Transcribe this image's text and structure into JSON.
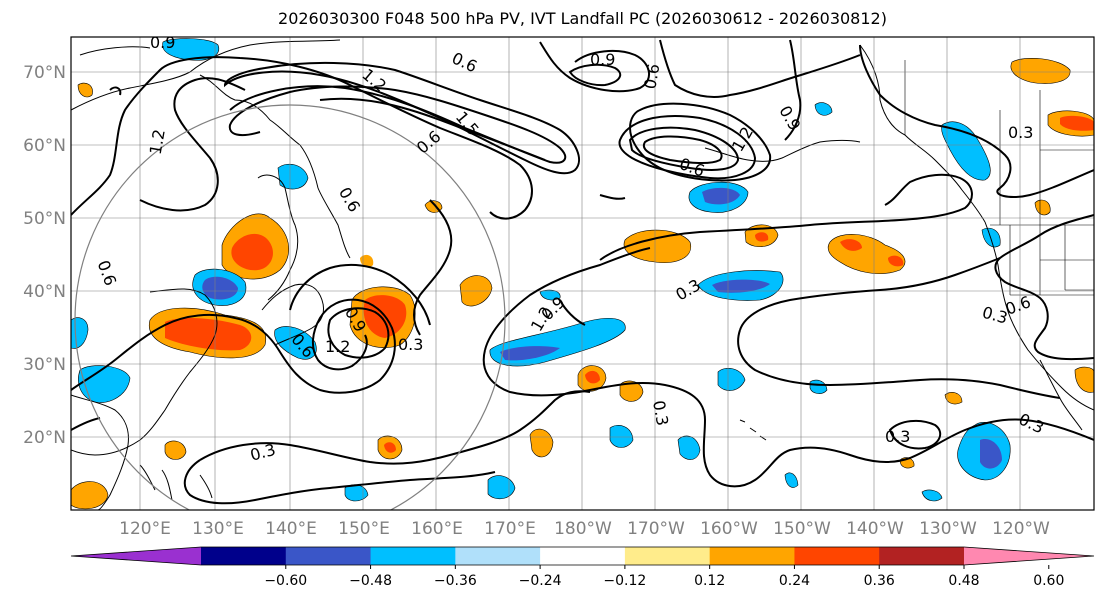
{
  "title": "2026030300 F048 500 hPa PV, IVT Landfall PC (2026030612 - 2026030812)",
  "lat_labels": [
    "70°N",
    "60°N",
    "50°N",
    "40°N",
    "30°N",
    "20°N"
  ],
  "lon_labels": [
    "120°E",
    "130°E",
    "140°E",
    "150°E",
    "160°E",
    "170°E",
    "180°W",
    "170°W",
    "160°W",
    "150°W",
    "140°W",
    "130°W",
    "120°W"
  ],
  "contour_labels": [
    "0.9",
    "1.2",
    "0.6",
    "0.9",
    "1.5",
    "0.6",
    "0.9",
    "0.6",
    "0.3",
    "1.2",
    "0.6",
    "0.6",
    "1.2",
    "0.6",
    "0.3",
    "0.6",
    "0.9",
    "1.2",
    "0.9",
    "1.2",
    "0.3",
    "0.3",
    "0.3",
    "0.6",
    "0.3",
    "0.3",
    "0.3"
  ],
  "colorbar": {
    "tick_labels": [
      "−0.60",
      "−0.48",
      "−0.36",
      "−0.24",
      "−0.12",
      "0.12",
      "0.24",
      "0.36",
      "0.48",
      "0.60"
    ],
    "colors": [
      "#9a30d0",
      "#00008b",
      "#3a56c8",
      "#00bfff",
      "#b0e0fa",
      "#ffffff",
      "#ffec8b",
      "#ffa500",
      "#ff4500",
      "#b22222",
      "#ff88b0"
    ]
  }
}
